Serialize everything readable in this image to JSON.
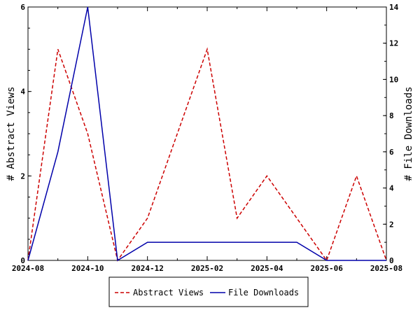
{
  "chart_data": {
    "type": "line",
    "x": [
      "2024-08",
      "2024-09",
      "2024-10",
      "2024-11",
      "2024-12",
      "2025-01",
      "2025-02",
      "2025-03",
      "2025-04",
      "2025-05",
      "2025-06",
      "2025-07",
      "2025-08"
    ],
    "x_tick_labels": [
      "2024-08",
      "2024-10",
      "2024-12",
      "2025-02",
      "2025-04",
      "2025-06",
      "2025-08"
    ],
    "ylabel_left": "# Abstract Views",
    "ylabel_right": "# File Downloads",
    "ylim_left": [
      0,
      6
    ],
    "ylim_right": [
      0,
      14
    ],
    "yticks_left": [
      "0",
      "2",
      "4",
      "6"
    ],
    "yticks_right": [
      "0",
      "2",
      "4",
      "6",
      "8",
      "10",
      "12",
      "14"
    ],
    "series": [
      {
        "name": "Abstract Views",
        "axis": "left",
        "style": "dashed",
        "color": "#cc0000",
        "values": [
          0,
          5,
          3,
          0,
          1,
          3,
          5,
          1,
          2,
          1,
          0,
          2,
          0
        ]
      },
      {
        "name": "File Downloads",
        "axis": "right",
        "style": "solid",
        "color": "#0000aa",
        "values": [
          0,
          6,
          14,
          0,
          1,
          1,
          1,
          1,
          1,
          1,
          0,
          0,
          0
        ]
      }
    ],
    "grid": false,
    "legend_position": "bottom"
  }
}
